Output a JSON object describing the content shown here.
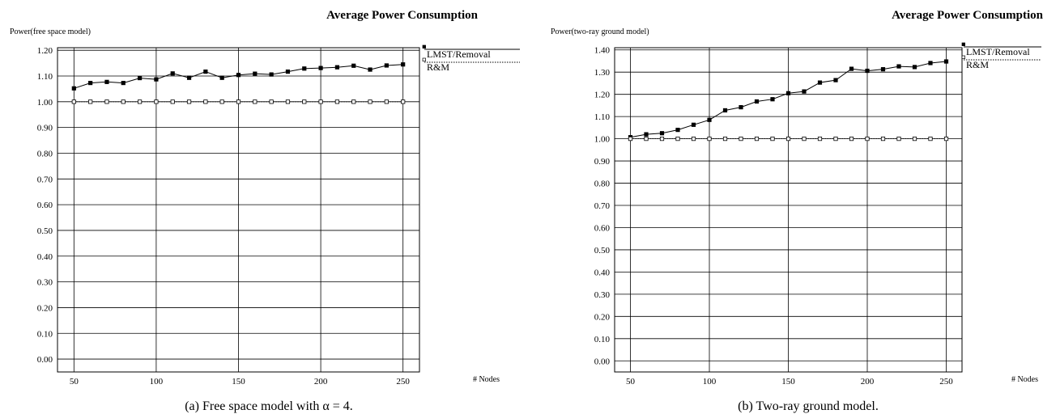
{
  "chart_data": [
    {
      "type": "line",
      "title": "Average Power Consumption",
      "ylabel": "Power(free space model)",
      "xlabel": "# Nodes",
      "caption": "(a) Free space model with α = 4.",
      "xlim": [
        40,
        260
      ],
      "ylim": [
        -0.05,
        1.21
      ],
      "xticks": [
        50,
        100,
        150,
        200,
        250
      ],
      "xtick_labels": [
        "50",
        "100",
        "150",
        "200",
        "250"
      ],
      "yticks": [
        0.0,
        0.1,
        0.2,
        0.3,
        0.4,
        0.5,
        0.6,
        0.7,
        0.8,
        0.9,
        1.0,
        1.1,
        1.2
      ],
      "ytick_labels": [
        "0.00",
        "0.10",
        "0.20",
        "0.30",
        "0.40",
        "0.50",
        "0.60",
        "0.70",
        "0.80",
        "0.90",
        "1.00",
        "1.10",
        "1.20"
      ],
      "grid": true,
      "legend_position": "right",
      "x": [
        50,
        60,
        70,
        80,
        90,
        100,
        110,
        120,
        130,
        140,
        150,
        160,
        170,
        180,
        190,
        200,
        210,
        220,
        230,
        240,
        250
      ],
      "series": [
        {
          "name": "LMST/Removal",
          "marker": "filled-square",
          "line": "solid",
          "values": [
            1.052,
            1.073,
            1.077,
            1.073,
            1.092,
            1.087,
            1.11,
            1.093,
            1.117,
            1.093,
            1.104,
            1.109,
            1.106,
            1.117,
            1.129,
            1.131,
            1.134,
            1.14,
            1.125,
            1.141,
            1.145
          ]
        },
        {
          "name": "R&M",
          "marker": "open-square",
          "line": "dotted",
          "values": [
            1.0,
            1.0,
            1.0,
            1.0,
            1.0,
            1.0,
            1.0,
            1.0,
            1.0,
            1.0,
            1.0,
            1.0,
            1.0,
            1.0,
            1.0,
            1.0,
            1.0,
            1.0,
            1.0,
            1.0,
            1.0
          ]
        }
      ]
    },
    {
      "type": "line",
      "title": "Average Power Consumption",
      "ylabel": "Power(two-ray ground model)",
      "xlabel": "# Nodes",
      "caption": "(b) Two-ray ground model.",
      "xlim": [
        40,
        260
      ],
      "ylim": [
        -0.05,
        1.41
      ],
      "xticks": [
        50,
        100,
        150,
        200,
        250
      ],
      "xtick_labels": [
        "50",
        "100",
        "150",
        "200",
        "250"
      ],
      "yticks": [
        0.0,
        0.1,
        0.2,
        0.3,
        0.4,
        0.5,
        0.6,
        0.7,
        0.8,
        0.9,
        1.0,
        1.1,
        1.2,
        1.3,
        1.4
      ],
      "ytick_labels": [
        "0.00",
        "0.10",
        "0.20",
        "0.30",
        "0.40",
        "0.50",
        "0.60",
        "0.70",
        "0.80",
        "0.90",
        "1.00",
        "1.10",
        "1.20",
        "1.30",
        "1.40"
      ],
      "grid": true,
      "legend_position": "right",
      "x": [
        50,
        60,
        70,
        80,
        90,
        100,
        110,
        120,
        130,
        140,
        150,
        160,
        170,
        180,
        190,
        200,
        210,
        220,
        230,
        240,
        250
      ],
      "series": [
        {
          "name": "LMST/Removal",
          "marker": "filled-square",
          "line": "solid",
          "values": [
            1.007,
            1.02,
            1.025,
            1.04,
            1.063,
            1.085,
            1.128,
            1.142,
            1.168,
            1.178,
            1.205,
            1.213,
            1.253,
            1.264,
            1.315,
            1.306,
            1.313,
            1.326,
            1.323,
            1.341,
            1.348
          ]
        },
        {
          "name": "R&M",
          "marker": "open-square",
          "line": "dotted",
          "values": [
            1.0,
            1.0,
            1.0,
            1.0,
            1.0,
            1.0,
            1.0,
            1.0,
            1.0,
            1.0,
            1.0,
            1.0,
            1.0,
            1.0,
            1.0,
            1.0,
            1.0,
            1.0,
            1.0,
            1.0,
            1.0
          ]
        }
      ]
    }
  ]
}
